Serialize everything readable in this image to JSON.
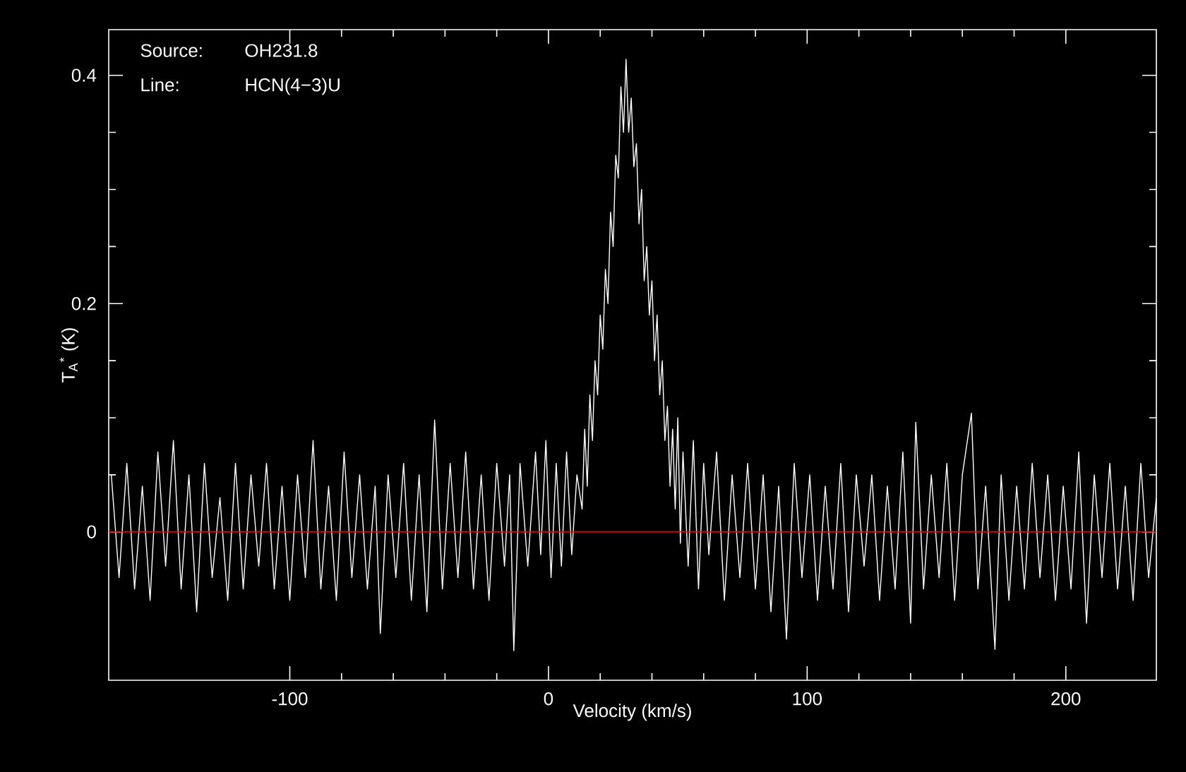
{
  "chart_data": {
    "type": "line",
    "xlabel": "Velocity (km/s)",
    "ylabel": "T$_{A}$$^{*}$ (K)",
    "annotations": [
      "Source:",
      "OH231.8",
      "Line:",
      "HCN(4−3)U"
    ],
    "xlim": [
      -170,
      235
    ],
    "ylim": [
      -0.13,
      0.44
    ],
    "xticks": [
      -100,
      0,
      100,
      200
    ],
    "yticks": [
      0,
      0.2,
      0.4
    ],
    "ref_lines": [
      {
        "axis": "y",
        "value": 0,
        "color": "#ff0000"
      }
    ],
    "series": [
      {
        "color": "#ffffff",
        "x": [
          -169,
          -166,
          -163,
          -160,
          -157,
          -154,
          -151,
          -148,
          -145,
          -142,
          -139,
          -136,
          -133,
          -130,
          -127,
          -124,
          -121,
          -118,
          -115,
          -112,
          -109,
          -106,
          -103,
          -100,
          -97,
          -94,
          -91,
          -88,
          -85,
          -82,
          -79,
          -76,
          -73,
          -70,
          -67,
          -65,
          -62,
          -59,
          -56,
          -53,
          -50,
          -47,
          -44,
          -41,
          -38,
          -35,
          -32,
          -29,
          -26,
          -23,
          -20,
          -17,
          -15,
          -13.4,
          -11,
          -8,
          -5,
          -3,
          -1,
          1,
          3,
          5,
          7,
          9,
          11,
          13,
          14,
          15,
          16,
          17,
          18,
          19,
          20,
          21,
          22,
          23,
          24,
          25,
          26,
          27,
          28,
          29,
          30,
          31,
          32,
          33,
          34,
          35,
          36,
          37,
          38,
          39,
          40,
          41,
          42,
          43,
          44,
          45,
          46,
          47,
          48,
          49,
          50,
          51,
          52,
          54,
          56,
          58,
          60,
          62,
          65,
          68,
          71,
          74,
          77,
          80,
          83,
          86,
          89,
          92,
          95,
          98,
          101,
          104,
          107,
          110,
          113,
          116,
          119,
          122,
          125,
          128,
          131,
          134,
          137,
          140,
          142,
          145,
          148,
          151,
          154,
          157,
          160,
          163.5,
          166,
          169,
          172.6,
          175,
          178,
          181,
          184,
          187,
          190,
          193,
          196,
          199,
          202,
          205,
          208,
          211,
          214,
          217,
          220,
          223,
          226,
          229,
          232,
          235
        ],
        "values": [
          0.05,
          -0.04,
          0.06,
          -0.05,
          0.04,
          -0.06,
          0.07,
          -0.03,
          0.08,
          -0.05,
          0.05,
          -0.07,
          0.06,
          -0.04,
          0.03,
          -0.06,
          0.06,
          -0.05,
          0.05,
          -0.03,
          0.06,
          -0.05,
          0.04,
          -0.06,
          0.05,
          -0.04,
          0.08,
          -0.05,
          0.04,
          -0.06,
          0.07,
          -0.04,
          0.05,
          -0.05,
          0.04,
          -0.089,
          0.05,
          -0.04,
          0.06,
          -0.06,
          0.05,
          -0.07,
          0.098,
          -0.05,
          0.06,
          -0.04,
          0.07,
          -0.05,
          0.05,
          -0.06,
          0.06,
          -0.03,
          0.05,
          -0.104,
          0.06,
          -0.03,
          0.07,
          -0.02,
          0.08,
          -0.04,
          0.06,
          -0.03,
          0.07,
          -0.02,
          0.05,
          0.02,
          0.09,
          0.04,
          0.12,
          0.08,
          0.15,
          0.12,
          0.19,
          0.16,
          0.23,
          0.2,
          0.28,
          0.25,
          0.33,
          0.31,
          0.39,
          0.35,
          0.414,
          0.35,
          0.38,
          0.32,
          0.34,
          0.27,
          0.3,
          0.22,
          0.25,
          0.19,
          0.22,
          0.15,
          0.19,
          0.12,
          0.15,
          0.08,
          0.11,
          0.04,
          0.09,
          0.02,
          0.1,
          -0.01,
          0.07,
          -0.03,
          0.08,
          -0.05,
          0.06,
          -0.02,
          0.07,
          -0.06,
          0.05,
          -0.04,
          0.06,
          -0.05,
          0.05,
          -0.07,
          0.04,
          -0.094,
          0.06,
          -0.04,
          0.05,
          -0.06,
          0.04,
          -0.05,
          0.06,
          -0.07,
          0.05,
          -0.03,
          0.05,
          -0.06,
          0.04,
          -0.05,
          0.07,
          -0.08,
          0.096,
          -0.05,
          0.05,
          -0.04,
          0.06,
          -0.06,
          0.05,
          0.104,
          -0.05,
          0.04,
          -0.103,
          0.05,
          -0.06,
          0.04,
          -0.05,
          0.06,
          -0.04,
          0.05,
          -0.06,
          0.04,
          -0.05,
          0.07,
          -0.08,
          0.05,
          -0.04,
          0.06,
          -0.05,
          0.04,
          -0.06,
          0.06,
          -0.04,
          0.03
        ]
      }
    ]
  }
}
